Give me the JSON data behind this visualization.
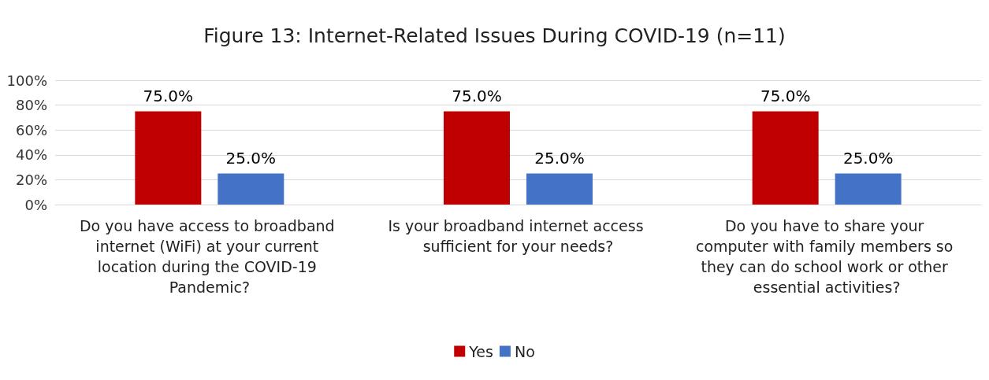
{
  "chart_data": {
    "type": "bar",
    "title": "Figure 13: Internet-Related Issues During COVID-19 (n=11)",
    "categories": [
      "Do you have access to broadband internet (WiFi) at your current location during the COVID-19 Pandemic?",
      "Is your broadband internet access sufficient for your needs?",
      "Do you have to share your computer with family members so they can do school work or other essential activities?"
    ],
    "series": [
      {
        "name": "Yes",
        "color": "#c00000",
        "values": [
          75,
          75,
          75
        ],
        "value_labels": [
          "75.0%",
          "75.0%",
          "75.0%"
        ]
      },
      {
        "name": "No",
        "color": "#4472c4",
        "values": [
          25,
          25,
          25
        ],
        "value_labels": [
          "25.0%",
          "25.0%",
          "25.0%"
        ]
      }
    ],
    "ylim": [
      0,
      100
    ],
    "yticks": [
      {
        "value": 0,
        "label": "0%"
      },
      {
        "value": 20,
        "label": "20%"
      },
      {
        "value": 40,
        "label": "40%"
      },
      {
        "value": 60,
        "label": "60%"
      },
      {
        "value": 80,
        "label": "80%"
      },
      {
        "value": 100,
        "label": "100%"
      }
    ],
    "grid": "y",
    "legend": "bottom"
  }
}
